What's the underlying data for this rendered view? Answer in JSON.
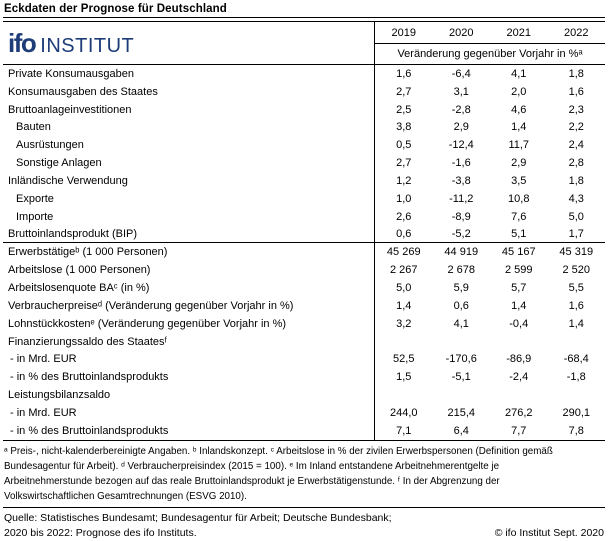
{
  "title": "Eckdaten der Prognose für Deutschland",
  "logo": {
    "ifo_text": "ifo",
    "institut_text": "INSTITUT",
    "color": "#1d3c78"
  },
  "table": {
    "years": [
      "2019",
      "2020",
      "2021",
      "2022"
    ],
    "unit_header": "Veränderung gegenüber Vorjahr in %ᵃ",
    "rows": [
      {
        "label": "Private Konsumausgaben",
        "indent": 0,
        "values": [
          "1,6",
          "-6,4",
          "4,1",
          "1,8"
        ]
      },
      {
        "label": "Konsumausgaben des Staates",
        "indent": 0,
        "values": [
          "2,7",
          "3,1",
          "2,0",
          "1,6"
        ]
      },
      {
        "label": "Bruttoanlageinvestitionen",
        "indent": 0,
        "values": [
          "2,5",
          "-2,8",
          "4,6",
          "2,3"
        ]
      },
      {
        "label": "Bauten",
        "indent": 1,
        "values": [
          "3,8",
          "2,9",
          "1,4",
          "2,2"
        ]
      },
      {
        "label": "Ausrüstungen",
        "indent": 1,
        "values": [
          "0,5",
          "-12,4",
          "11,7",
          "2,4"
        ]
      },
      {
        "label": "Sonstige Anlagen",
        "indent": 1,
        "values": [
          "2,7",
          "-1,6",
          "2,9",
          "2,8"
        ]
      },
      {
        "label": "Inländische Verwendung",
        "indent": 0,
        "values": [
          "1,2",
          "-3,8",
          "3,5",
          "1,8"
        ]
      },
      {
        "label": "Exporte",
        "indent": 1,
        "values": [
          "1,0",
          "-11,2",
          "10,8",
          "4,3"
        ]
      },
      {
        "label": "Importe",
        "indent": 1,
        "values": [
          "2,6",
          "-8,9",
          "7,6",
          "5,0"
        ]
      },
      {
        "label": "Bruttoinlandsprodukt (BIP)",
        "indent": 0,
        "values": [
          "0,6",
          "-5,2",
          "5,1",
          "1,7"
        ],
        "divider_after": true
      },
      {
        "label": "Erwerbstätigeᵇ (1 000 Personen)",
        "indent": 0,
        "values": [
          "45 269",
          "44 919",
          "45 167",
          "45 319"
        ]
      },
      {
        "label": "Arbeitslose (1 000 Personen)",
        "indent": 0,
        "values": [
          "2 267",
          "2 678",
          "2 599",
          "2 520"
        ]
      },
      {
        "label": "Arbeitslosenquote BAᶜ (in %)",
        "indent": 0,
        "values": [
          "5,0",
          "5,9",
          "5,7",
          "5,5"
        ]
      },
      {
        "label": "Verbraucherpreiseᵈ (Veränderung gegenüber Vorjahr in %)",
        "indent": 0,
        "values": [
          "1,4",
          "0,6",
          "1,4",
          "1,6"
        ]
      },
      {
        "label": "Lohnstückkostenᵉ (Veränderung gegenüber Vorjahr in %)",
        "indent": 0,
        "values": [
          "3,2",
          "4,1",
          "-0,4",
          "1,4"
        ]
      },
      {
        "label": "Finanzierungssaldo des Staatesᶠ",
        "indent": 0,
        "values": [
          "",
          "",
          "",
          ""
        ]
      },
      {
        "label": "- in Mrd. EUR",
        "indent": 2,
        "values": [
          "52,5",
          "-170,6",
          "-86,9",
          "-68,4"
        ]
      },
      {
        "label": "- in % des Bruttoinlandsprodukts",
        "indent": 2,
        "values": [
          "1,5",
          "-5,1",
          "-2,4",
          "-1,8"
        ]
      },
      {
        "label": "Leistungsbilanzsaldo",
        "indent": 0,
        "values": [
          "",
          "",
          "",
          ""
        ]
      },
      {
        "label": "- in Mrd. EUR",
        "indent": 2,
        "values": [
          "244,0",
          "215,4",
          "276,2",
          "290,1"
        ]
      },
      {
        "label": "- in % des Bruttoinlandsprodukts",
        "indent": 2,
        "values": [
          "7,1",
          "6,4",
          "7,7",
          "7,8"
        ]
      }
    ]
  },
  "footnotes": {
    "lines": [
      "ᵃ Preis-, nicht-kalenderbereinigte Angaben. ᵇ Inlandskonzept. ᶜ Arbeitslose in % der zivilen Erwerbspersonen (Definition gemäß",
      "Bundesagentur für Arbeit). ᵈ Verbraucherpreisindex (2015 = 100). ᵉ Im Inland entstandene Arbeitnehmerentgelte je",
      "Arbeitnehmerstunde bezogen auf das reale Bruttoinlandsprodukt je Erwerbstätigenstunde. ᶠ In der Abgrenzung der",
      "Volkswirtschaftlichen Gesamtrechnungen (ESVG 2010)."
    ]
  },
  "source": {
    "line1": "Quelle: Statistisches Bundesamt; Bundesagentur für Arbeit; Deutsche Bundesbank;",
    "line2": "2020 bis 2022: Prognose des ifo Instituts.",
    "copyright": "© ifo Institut Sept. 2020"
  }
}
